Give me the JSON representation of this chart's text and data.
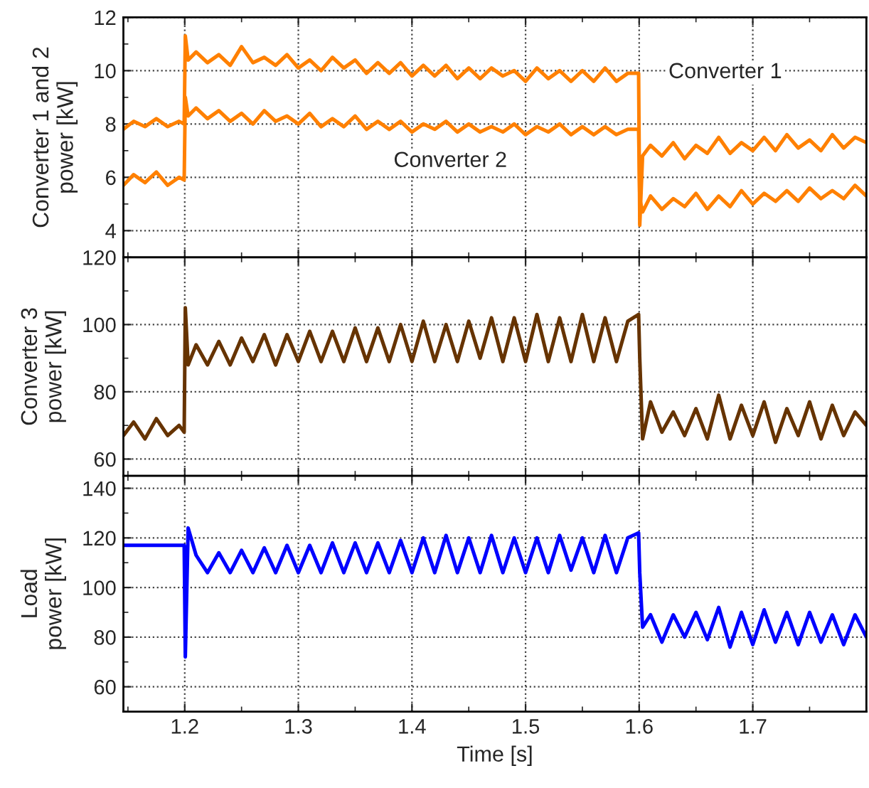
{
  "chart_data": [
    {
      "type": "line",
      "ylabel": "Converter 1 and 2\npower [kW]",
      "xlim": [
        1.146,
        1.8
      ],
      "xticks": [
        1.2,
        1.3,
        1.4,
        1.5,
        1.6,
        1.7
      ],
      "ylim": [
        3,
        12
      ],
      "yticks": [
        4,
        6,
        8,
        10,
        12
      ],
      "grid": true,
      "tick_labels": "y",
      "marker": "none",
      "line_style": "solid",
      "x": [
        1.146,
        1.155,
        1.165,
        1.175,
        1.185,
        1.195,
        1.1995,
        1.2005,
        1.203,
        1.21,
        1.22,
        1.23,
        1.24,
        1.25,
        1.26,
        1.27,
        1.28,
        1.29,
        1.3,
        1.31,
        1.32,
        1.33,
        1.34,
        1.35,
        1.36,
        1.37,
        1.38,
        1.39,
        1.4,
        1.41,
        1.42,
        1.43,
        1.44,
        1.45,
        1.46,
        1.47,
        1.48,
        1.49,
        1.5,
        1.51,
        1.52,
        1.53,
        1.54,
        1.55,
        1.56,
        1.57,
        1.58,
        1.59,
        1.5995,
        1.6005,
        1.603,
        1.61,
        1.62,
        1.63,
        1.64,
        1.65,
        1.66,
        1.67,
        1.68,
        1.69,
        1.7,
        1.71,
        1.72,
        1.73,
        1.74,
        1.75,
        1.76,
        1.77,
        1.78,
        1.79,
        1.8
      ],
      "series": [
        {
          "color": "#ff8000",
          "values": [
            7.8,
            8.1,
            7.9,
            8.2,
            7.9,
            8.1,
            8.0,
            11.3,
            10.4,
            10.7,
            10.3,
            10.6,
            10.2,
            10.9,
            10.3,
            10.5,
            10.2,
            10.6,
            10.1,
            10.4,
            10.0,
            10.5,
            10.1,
            10.4,
            9.9,
            10.3,
            9.9,
            10.3,
            9.8,
            10.2,
            9.8,
            10.2,
            9.7,
            10.1,
            9.7,
            10.1,
            9.8,
            10.0,
            9.6,
            10.1,
            9.7,
            10.0,
            9.6,
            10.0,
            9.6,
            10.1,
            9.6,
            9.9,
            9.9,
            4.2,
            6.8,
            7.2,
            6.8,
            7.3,
            6.7,
            7.2,
            6.9,
            7.5,
            6.9,
            7.3,
            7.0,
            7.5,
            7.0,
            7.6,
            7.1,
            7.4,
            7.0,
            7.6,
            7.1,
            7.5,
            7.3
          ]
        },
        {
          "color": "#ff8000",
          "values": [
            5.7,
            6.1,
            5.8,
            6.2,
            5.7,
            6.0,
            5.9,
            9.0,
            8.3,
            8.6,
            8.2,
            8.5,
            8.1,
            8.4,
            8.0,
            8.5,
            8.1,
            8.3,
            8.0,
            8.4,
            7.9,
            8.2,
            7.9,
            8.3,
            7.8,
            8.1,
            7.8,
            8.1,
            7.7,
            8.0,
            7.8,
            8.1,
            7.7,
            8.0,
            7.7,
            7.9,
            7.7,
            8.0,
            7.6,
            7.9,
            7.7,
            8.0,
            7.6,
            7.9,
            7.6,
            7.9,
            7.6,
            7.8,
            7.8,
            5.2,
            4.7,
            5.3,
            4.8,
            5.2,
            4.9,
            5.4,
            4.8,
            5.3,
            4.9,
            5.5,
            5.0,
            5.4,
            5.1,
            5.5,
            5.1,
            5.6,
            5.2,
            5.5,
            5.2,
            5.7,
            5.3
          ]
        }
      ],
      "annotations": [
        "Converter 1",
        "Converter 2"
      ]
    },
    {
      "type": "line",
      "ylabel": "Converter 3\npower [kW]",
      "xlim": [
        1.146,
        1.8
      ],
      "xticks": [
        1.2,
        1.3,
        1.4,
        1.5,
        1.6,
        1.7
      ],
      "ylim": [
        55,
        120
      ],
      "yticks": [
        60,
        80,
        100,
        120
      ],
      "grid": true,
      "tick_labels": "y",
      "marker": "none",
      "line_style": "solid",
      "x": [
        1.146,
        1.155,
        1.165,
        1.175,
        1.185,
        1.195,
        1.1995,
        1.2005,
        1.203,
        1.21,
        1.22,
        1.23,
        1.24,
        1.25,
        1.26,
        1.27,
        1.28,
        1.29,
        1.3,
        1.31,
        1.32,
        1.33,
        1.34,
        1.35,
        1.36,
        1.37,
        1.38,
        1.39,
        1.4,
        1.41,
        1.42,
        1.43,
        1.44,
        1.45,
        1.46,
        1.47,
        1.48,
        1.49,
        1.5,
        1.51,
        1.52,
        1.53,
        1.54,
        1.55,
        1.56,
        1.57,
        1.58,
        1.59,
        1.5995,
        1.6005,
        1.603,
        1.61,
        1.62,
        1.63,
        1.64,
        1.65,
        1.66,
        1.67,
        1.68,
        1.69,
        1.7,
        1.71,
        1.72,
        1.73,
        1.74,
        1.75,
        1.76,
        1.77,
        1.78,
        1.79,
        1.8
      ],
      "series": [
        {
          "color": "#663300",
          "values": [
            67,
            71,
            66,
            72,
            67,
            70,
            68,
            105,
            88,
            94,
            88,
            95,
            88,
            96,
            89,
            97,
            88,
            97,
            89,
            98,
            89,
            98,
            89,
            99,
            89,
            99,
            89,
            100,
            89,
            101,
            89,
            100,
            89,
            101,
            90,
            102,
            89,
            102,
            89,
            103,
            89,
            102,
            89,
            103,
            89,
            102,
            89,
            101,
            103,
            90,
            66,
            77,
            68,
            74,
            67,
            75,
            66,
            79,
            66,
            76,
            67,
            77,
            65,
            75,
            67,
            77,
            66,
            76,
            67,
            74,
            70
          ]
        }
      ]
    },
    {
      "type": "line",
      "xlabel": "Time [s]",
      "ylabel": "Load\npower [kW]",
      "xlim": [
        1.146,
        1.8
      ],
      "xticks": [
        1.2,
        1.3,
        1.4,
        1.5,
        1.6,
        1.7
      ],
      "ylim": [
        50,
        145
      ],
      "yticks": [
        60,
        80,
        100,
        120,
        140
      ],
      "grid": true,
      "marker": "none",
      "line_style": "solid",
      "x": [
        1.146,
        1.155,
        1.165,
        1.175,
        1.185,
        1.195,
        1.1995,
        1.2005,
        1.203,
        1.21,
        1.22,
        1.23,
        1.24,
        1.25,
        1.26,
        1.27,
        1.28,
        1.29,
        1.3,
        1.31,
        1.32,
        1.33,
        1.34,
        1.35,
        1.36,
        1.37,
        1.38,
        1.39,
        1.4,
        1.41,
        1.42,
        1.43,
        1.44,
        1.45,
        1.46,
        1.47,
        1.48,
        1.49,
        1.5,
        1.51,
        1.52,
        1.53,
        1.54,
        1.55,
        1.56,
        1.57,
        1.58,
        1.59,
        1.5995,
        1.6005,
        1.603,
        1.61,
        1.62,
        1.63,
        1.64,
        1.65,
        1.66,
        1.67,
        1.68,
        1.69,
        1.7,
        1.71,
        1.72,
        1.73,
        1.74,
        1.75,
        1.76,
        1.77,
        1.78,
        1.79,
        1.8
      ],
      "series": [
        {
          "color": "#0000ff",
          "values": [
            117,
            117,
            117,
            117,
            117,
            117,
            117,
            72,
            124,
            113,
            106,
            114,
            106,
            115,
            106,
            116,
            106,
            117,
            106,
            117,
            106,
            118,
            106,
            118,
            106,
            118,
            106,
            119,
            106,
            120,
            106,
            121,
            106,
            120,
            106,
            121,
            106,
            120,
            106,
            120,
            106,
            121,
            107,
            120,
            106,
            121,
            106,
            120,
            122,
            106,
            84,
            89,
            78,
            89,
            80,
            90,
            79,
            92,
            76,
            90,
            77,
            91,
            78,
            90,
            77,
            90,
            78,
            89,
            77,
            89,
            80
          ]
        }
      ]
    }
  ]
}
